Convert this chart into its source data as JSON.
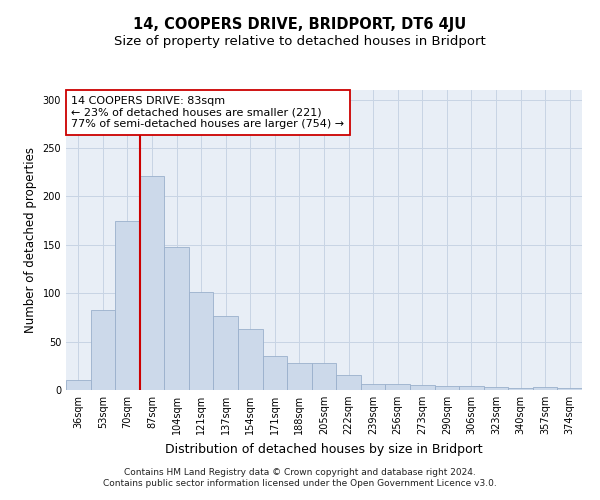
{
  "title": "14, COOPERS DRIVE, BRIDPORT, DT6 4JU",
  "subtitle": "Size of property relative to detached houses in Bridport",
  "xlabel": "Distribution of detached houses by size in Bridport",
  "ylabel": "Number of detached properties",
  "categories": [
    "36sqm",
    "53sqm",
    "70sqm",
    "87sqm",
    "104sqm",
    "121sqm",
    "137sqm",
    "154sqm",
    "171sqm",
    "188sqm",
    "205sqm",
    "222sqm",
    "239sqm",
    "256sqm",
    "273sqm",
    "290sqm",
    "306sqm",
    "323sqm",
    "340sqm",
    "357sqm",
    "374sqm"
  ],
  "values": [
    10,
    83,
    175,
    221,
    148,
    101,
    76,
    63,
    35,
    28,
    28,
    15,
    6,
    6,
    5,
    4,
    4,
    3,
    2,
    3,
    2
  ],
  "bar_color": "#ccd9ea",
  "bar_edge_color": "#9ab0cc",
  "grid_color": "#c8d4e4",
  "background_color": "#e8eef6",
  "vline_x_index": 3,
  "vline_color": "#cc0000",
  "annotation_line1": "14 COOPERS DRIVE: 83sqm",
  "annotation_line2": "← 23% of detached houses are smaller (221)",
  "annotation_line3": "77% of semi-detached houses are larger (754) →",
  "annotation_box_color": "#ffffff",
  "annotation_edge_color": "#cc0000",
  "footer_line1": "Contains HM Land Registry data © Crown copyright and database right 2024.",
  "footer_line2": "Contains public sector information licensed under the Open Government Licence v3.0.",
  "ylim": [
    0,
    310
  ],
  "yticks": [
    0,
    50,
    100,
    150,
    200,
    250,
    300
  ],
  "title_fontsize": 10.5,
  "subtitle_fontsize": 9.5,
  "ylabel_fontsize": 8.5,
  "xlabel_fontsize": 9,
  "tick_fontsize": 7,
  "annotation_fontsize": 8,
  "footer_fontsize": 6.5
}
